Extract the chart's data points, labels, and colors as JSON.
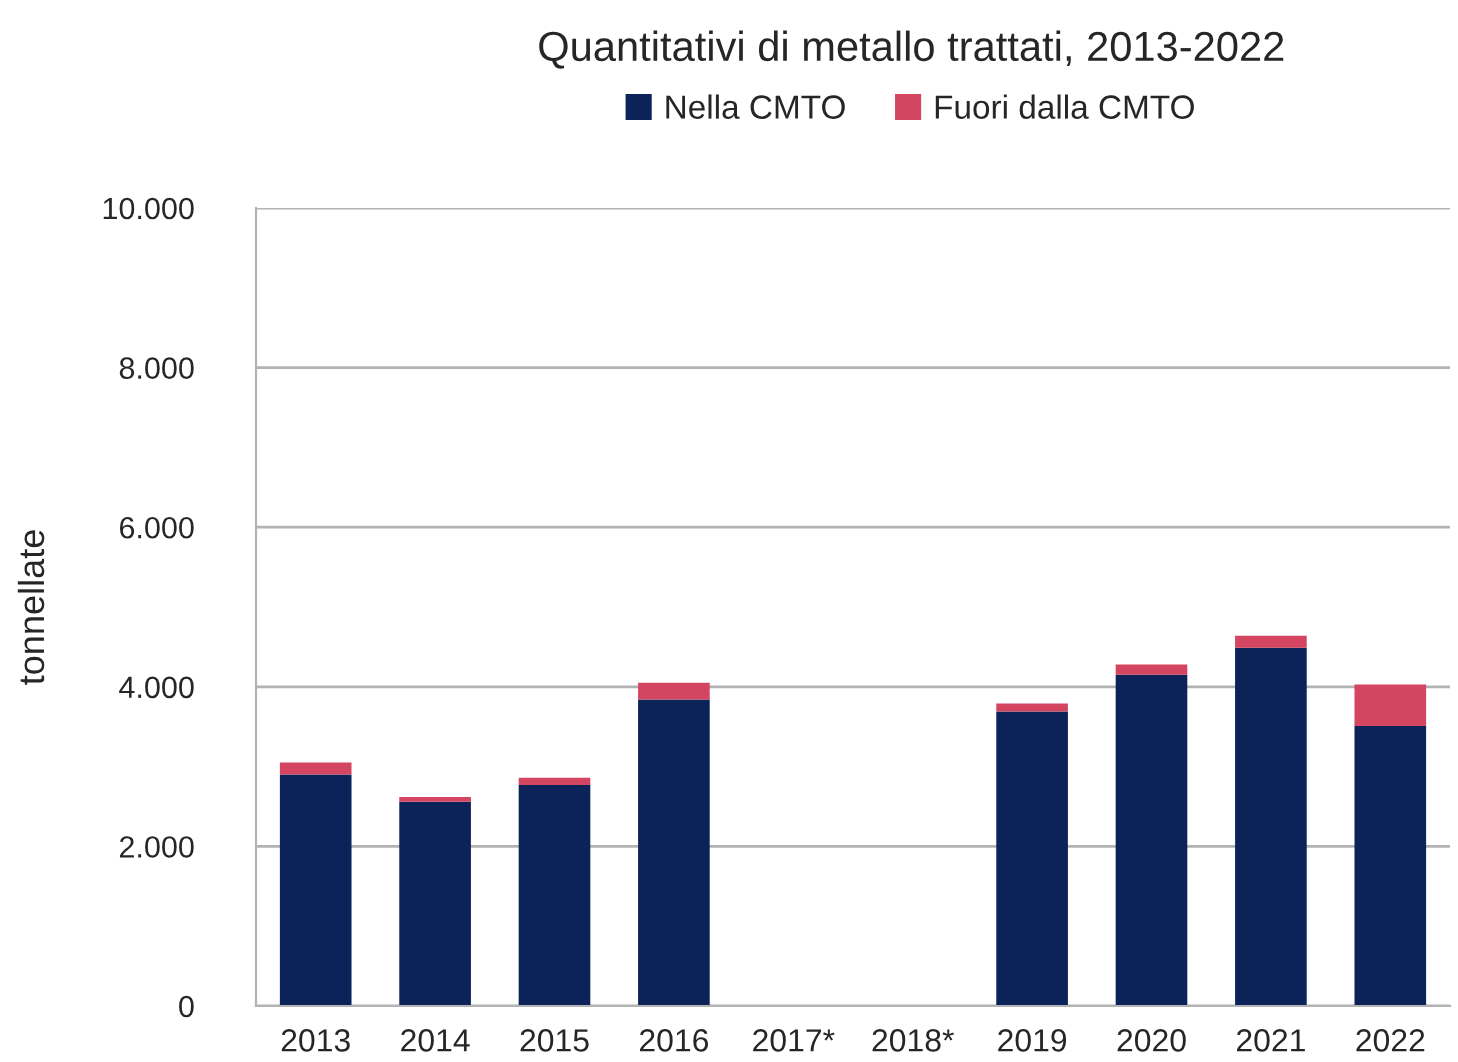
{
  "chart_data": {
    "type": "bar",
    "title": "Quantitativi di metallo trattati, 2013-2022",
    "ylabel": "tonnellate",
    "categories": [
      "2013",
      "2014",
      "2015",
      "2016",
      "2017*",
      "2018*",
      "2019",
      "2020",
      "2021",
      "2022"
    ],
    "series": [
      {
        "name": "Nella CMTO",
        "color": "#0c2359",
        "values": [
          2900,
          2560,
          2770,
          3840,
          null,
          null,
          3690,
          4150,
          4490,
          3510
        ]
      },
      {
        "name": "Fuori dalla CMTO",
        "color": "#d44561",
        "values": [
          150,
          60,
          90,
          210,
          null,
          null,
          100,
          130,
          150,
          520
        ]
      }
    ],
    "stacked": true,
    "ylim": [
      0,
      10000
    ],
    "yticks": [
      {
        "value": 0,
        "label": "0"
      },
      {
        "value": 2000,
        "label": "2.000"
      },
      {
        "value": 4000,
        "label": "4.000"
      },
      {
        "value": 6000,
        "label": "6.000"
      },
      {
        "value": 8000,
        "label": "8.000"
      },
      {
        "value": 10000,
        "label": "10.000"
      }
    ],
    "grid": "y",
    "legend": "top"
  }
}
